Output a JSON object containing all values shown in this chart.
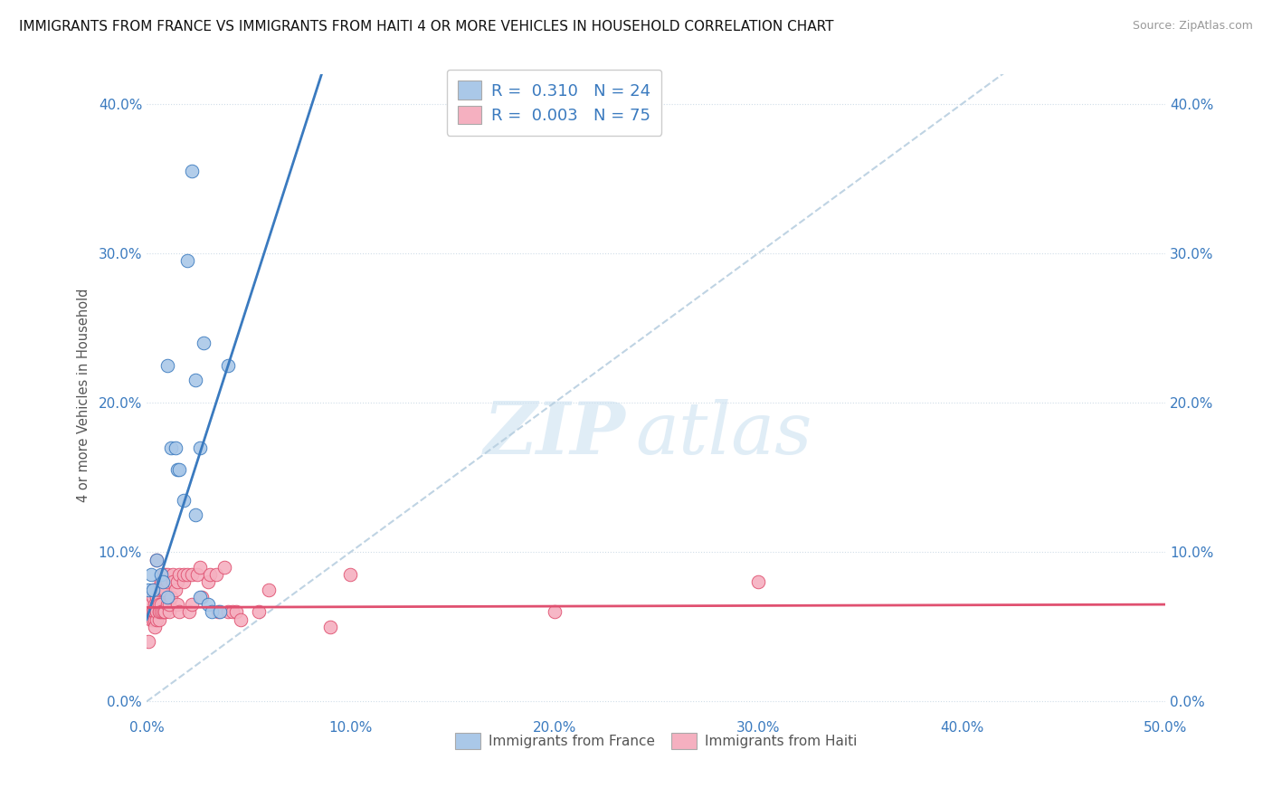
{
  "title": "IMMIGRANTS FROM FRANCE VS IMMIGRANTS FROM HAITI 4 OR MORE VEHICLES IN HOUSEHOLD CORRELATION CHART",
  "source": "Source: ZipAtlas.com",
  "ylabel_label": "4 or more Vehicles in Household",
  "xlim": [
    0.0,
    0.5
  ],
  "ylim": [
    -0.01,
    0.42
  ],
  "france_R": "0.310",
  "france_N": "24",
  "haiti_R": "0.003",
  "haiti_N": "75",
  "france_color": "#aac8e8",
  "haiti_color": "#f5b0c0",
  "france_line_color": "#3a7abf",
  "haiti_line_color": "#e05070",
  "trendline_color": "#b8cfe0",
  "france_line_slope": 1.05,
  "france_line_intercept": 0.002,
  "haiti_line_slope": 0.004,
  "haiti_line_intercept": 0.063,
  "france_scatter": [
    [
      0.001,
      0.075
    ],
    [
      0.002,
      0.085
    ],
    [
      0.003,
      0.075
    ],
    [
      0.005,
      0.095
    ],
    [
      0.007,
      0.085
    ],
    [
      0.008,
      0.08
    ],
    [
      0.01,
      0.07
    ],
    [
      0.01,
      0.225
    ],
    [
      0.012,
      0.17
    ],
    [
      0.014,
      0.17
    ],
    [
      0.015,
      0.155
    ],
    [
      0.016,
      0.155
    ],
    [
      0.018,
      0.135
    ],
    [
      0.02,
      0.295
    ],
    [
      0.022,
      0.355
    ],
    [
      0.024,
      0.215
    ],
    [
      0.024,
      0.125
    ],
    [
      0.026,
      0.17
    ],
    [
      0.026,
      0.07
    ],
    [
      0.028,
      0.24
    ],
    [
      0.03,
      0.065
    ],
    [
      0.032,
      0.06
    ],
    [
      0.036,
      0.06
    ],
    [
      0.04,
      0.225
    ]
  ],
  "haiti_scatter": [
    [
      0.001,
      0.04
    ],
    [
      0.002,
      0.06
    ],
    [
      0.002,
      0.055
    ],
    [
      0.002,
      0.065
    ],
    [
      0.003,
      0.06
    ],
    [
      0.003,
      0.055
    ],
    [
      0.003,
      0.06
    ],
    [
      0.003,
      0.07
    ],
    [
      0.003,
      0.075
    ],
    [
      0.004,
      0.065
    ],
    [
      0.004,
      0.055
    ],
    [
      0.004,
      0.06
    ],
    [
      0.004,
      0.06
    ],
    [
      0.004,
      0.05
    ],
    [
      0.004,
      0.075
    ],
    [
      0.005,
      0.06
    ],
    [
      0.005,
      0.055
    ],
    [
      0.005,
      0.065
    ],
    [
      0.005,
      0.06
    ],
    [
      0.005,
      0.07
    ],
    [
      0.006,
      0.06
    ],
    [
      0.006,
      0.065
    ],
    [
      0.006,
      0.055
    ],
    [
      0.006,
      0.06
    ],
    [
      0.006,
      0.075
    ],
    [
      0.007,
      0.08
    ],
    [
      0.007,
      0.065
    ],
    [
      0.007,
      0.08
    ],
    [
      0.007,
      0.06
    ],
    [
      0.008,
      0.085
    ],
    [
      0.008,
      0.075
    ],
    [
      0.008,
      0.06
    ],
    [
      0.008,
      0.075
    ],
    [
      0.009,
      0.075
    ],
    [
      0.009,
      0.06
    ],
    [
      0.009,
      0.085
    ],
    [
      0.009,
      0.06
    ],
    [
      0.01,
      0.085
    ],
    [
      0.01,
      0.08
    ],
    [
      0.01,
      0.065
    ],
    [
      0.011,
      0.06
    ],
    [
      0.011,
      0.065
    ],
    [
      0.012,
      0.07
    ],
    [
      0.013,
      0.085
    ],
    [
      0.013,
      0.08
    ],
    [
      0.014,
      0.075
    ],
    [
      0.015,
      0.065
    ],
    [
      0.015,
      0.08
    ],
    [
      0.016,
      0.085
    ],
    [
      0.016,
      0.06
    ],
    [
      0.018,
      0.08
    ],
    [
      0.018,
      0.085
    ],
    [
      0.02,
      0.085
    ],
    [
      0.021,
      0.06
    ],
    [
      0.022,
      0.085
    ],
    [
      0.022,
      0.065
    ],
    [
      0.025,
      0.085
    ],
    [
      0.026,
      0.09
    ],
    [
      0.027,
      0.07
    ],
    [
      0.03,
      0.08
    ],
    [
      0.031,
      0.085
    ],
    [
      0.034,
      0.085
    ],
    [
      0.035,
      0.06
    ],
    [
      0.038,
      0.09
    ],
    [
      0.04,
      0.06
    ],
    [
      0.042,
      0.06
    ],
    [
      0.044,
      0.06
    ],
    [
      0.046,
      0.055
    ],
    [
      0.055,
      0.06
    ],
    [
      0.06,
      0.075
    ],
    [
      0.09,
      0.05
    ],
    [
      0.1,
      0.085
    ],
    [
      0.2,
      0.06
    ],
    [
      0.3,
      0.08
    ],
    [
      0.005,
      0.095
    ]
  ],
  "background_color": "#ffffff",
  "grid_color": "#d0dde8",
  "watermark_zip": "ZIP",
  "watermark_atlas": "atlas"
}
